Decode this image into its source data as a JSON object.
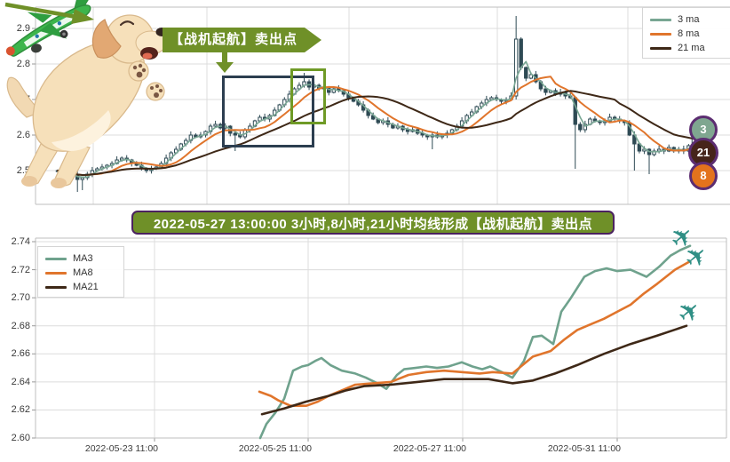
{
  "top_chart": {
    "y_ticks": [
      "2.9",
      "2.8",
      "2.7",
      "2.6",
      "2.5"
    ],
    "legend": [
      {
        "label": "3 ma",
        "color": "#78a693"
      },
      {
        "label": "8 ma",
        "color": "#e0752c"
      },
      {
        "label": "21 ma",
        "color": "#3e2817"
      }
    ],
    "sell_flag_text": "【战机起航】卖出点",
    "badges": [
      {
        "label": "3",
        "color": "#7fa690"
      },
      {
        "label": "21",
        "color": "#46241a"
      },
      {
        "label": "8",
        "color": "#e3731d"
      }
    ]
  },
  "annotation_banner": {
    "text": "2022-05-27 13:00:00 3小时,8小时,21小时均线形成【战机起航】卖出点"
  },
  "bottom_chart": {
    "y_ticks": [
      "2.74",
      "2.72",
      "2.70",
      "2.68",
      "2.66",
      "2.64",
      "2.62",
      "2.60"
    ],
    "x_ticks": [
      "2022-05-23 11:00",
      "2022-05-25 11:00",
      "2022-05-27 11:00",
      "2022-05-31 11:00"
    ],
    "legend": [
      {
        "label": "MA3",
        "color": "#6fa28d"
      },
      {
        "label": "MA8",
        "color": "#e0752c"
      },
      {
        "label": "MA21",
        "color": "#3e2817"
      }
    ]
  },
  "icons": {
    "airplane": "✈"
  },
  "colors": {
    "candle": "#2e4a54",
    "grid": "#dcdcdc",
    "spine": "#bfbfbf",
    "olive_banner": "#6f9028",
    "purple_border": "#4b2260",
    "box_navy": "#2c3e50",
    "box_green": "#6f9a26"
  },
  "chart_data": [
    {
      "type": "candlestick",
      "title": "",
      "ylabel": "",
      "ylim": [
        2.44,
        2.96
      ],
      "y_tick_values": [
        2.9,
        2.8,
        2.7,
        2.6,
        2.5
      ],
      "grid": true,
      "legend_position": "top-right",
      "ma_periods": [
        3,
        8,
        21
      ],
      "ma_colors": {
        "3": "#78a693",
        "8": "#e0752c",
        "21": "#3e2817"
      },
      "closes": [
        2.5,
        2.495,
        2.485,
        2.49,
        2.475,
        2.48,
        2.49,
        2.5,
        2.505,
        2.51,
        2.515,
        2.52,
        2.53,
        2.535,
        2.53,
        2.52,
        2.515,
        2.505,
        2.5,
        2.505,
        2.51,
        2.52,
        2.535,
        2.55,
        2.56,
        2.575,
        2.585,
        2.6,
        2.595,
        2.6,
        2.61,
        2.625,
        2.63,
        2.62,
        2.625,
        2.605,
        2.6,
        2.595,
        2.615,
        2.625,
        2.64,
        2.65,
        2.645,
        2.655,
        2.67,
        2.685,
        2.7,
        2.715,
        2.73,
        2.74,
        2.75,
        2.735,
        2.74,
        2.73,
        2.735,
        2.72,
        2.73,
        2.725,
        2.715,
        2.705,
        2.695,
        2.685,
        2.67,
        2.655,
        2.645,
        2.635,
        2.64,
        2.63,
        2.62,
        2.625,
        2.615,
        2.61,
        2.615,
        2.605,
        2.6,
        2.595,
        2.6,
        2.595,
        2.6,
        2.605,
        2.615,
        2.625,
        2.64,
        2.655,
        2.665,
        2.68,
        2.69,
        2.7,
        2.705,
        2.7,
        2.695,
        2.7,
        2.71,
        2.87,
        2.79,
        2.76,
        2.77,
        2.75,
        2.73,
        2.72,
        2.725,
        2.715,
        2.72,
        2.71,
        2.705,
        2.63,
        2.615,
        2.63,
        2.645,
        2.64,
        2.635,
        2.64,
        2.65,
        2.645,
        2.64,
        2.635,
        2.6,
        2.575,
        2.555,
        2.56,
        2.545,
        2.555,
        2.56,
        2.555,
        2.565,
        2.555,
        2.56,
        2.555,
        2.57,
        2.59
      ],
      "wick_overrides": {
        "4": {
          "low": 2.44
        },
        "5": {
          "low": 2.445
        },
        "36": {
          "low": 2.555
        },
        "50": {
          "high": 2.775
        },
        "76": {
          "low": 2.56
        },
        "93": {
          "high": 2.935,
          "low": 2.7
        },
        "94": {
          "high": 2.875
        },
        "105": {
          "low": 2.505
        },
        "117": {
          "low": 2.5
        },
        "120": {
          "low": 2.49
        }
      }
    },
    {
      "type": "line",
      "title": "",
      "ylabel": "",
      "ylim": [
        2.595,
        2.745
      ],
      "y_tick_values": [
        2.74,
        2.72,
        2.7,
        2.68,
        2.66,
        2.64,
        2.62,
        2.6
      ],
      "x_tick_labels": [
        "2022-05-23 11:00",
        "2022-05-25 11:00",
        "2022-05-27 11:00",
        "2022-05-31 11:00"
      ],
      "grid": true,
      "legend_position": "top-left",
      "series": [
        {
          "name": "MA3",
          "color": "#6fa28d",
          "points": [
            [
              293,
              2.6
            ],
            [
              300,
              2.61
            ],
            [
              310,
              2.618
            ],
            [
              320,
              2.628
            ],
            [
              330,
              2.648
            ],
            [
              340,
              2.651
            ],
            [
              347,
              2.652
            ],
            [
              355,
              2.655
            ],
            [
              362,
              2.657
            ],
            [
              372,
              2.652
            ],
            [
              385,
              2.648
            ],
            [
              400,
              2.646
            ],
            [
              412,
              2.643
            ],
            [
              425,
              2.639
            ],
            [
              435,
              2.635
            ],
            [
              447,
              2.645
            ],
            [
              455,
              2.649
            ],
            [
              468,
              2.65
            ],
            [
              480,
              2.651
            ],
            [
              492,
              2.65
            ],
            [
              505,
              2.651
            ],
            [
              520,
              2.654
            ],
            [
              532,
              2.651
            ],
            [
              543,
              2.649
            ],
            [
              552,
              2.651
            ],
            [
              565,
              2.647
            ],
            [
              577,
              2.643
            ],
            [
              590,
              2.655
            ],
            [
              600,
              2.672
            ],
            [
              610,
              2.673
            ],
            [
              623,
              2.667
            ],
            [
              632,
              2.69
            ],
            [
              643,
              2.7
            ],
            [
              658,
              2.715
            ],
            [
              670,
              2.719
            ],
            [
              683,
              2.721
            ],
            [
              695,
              2.719
            ],
            [
              710,
              2.72
            ],
            [
              728,
              2.715
            ],
            [
              742,
              2.722
            ],
            [
              755,
              2.73
            ],
            [
              766,
              2.734
            ],
            [
              777,
              2.737
            ]
          ]
        },
        {
          "name": "MA8",
          "color": "#e0752c",
          "points": [
            [
              292,
              2.633
            ],
            [
              305,
              2.63
            ],
            [
              313,
              2.627
            ],
            [
              327,
              2.623
            ],
            [
              345,
              2.623
            ],
            [
              358,
              2.626
            ],
            [
              370,
              2.63
            ],
            [
              385,
              2.634
            ],
            [
              400,
              2.638
            ],
            [
              420,
              2.639
            ],
            [
              440,
              2.64
            ],
            [
              460,
              2.645
            ],
            [
              480,
              2.647
            ],
            [
              500,
              2.648
            ],
            [
              520,
              2.647
            ],
            [
              540,
              2.646
            ],
            [
              555,
              2.647
            ],
            [
              577,
              2.646
            ],
            [
              600,
              2.658
            ],
            [
              620,
              2.662
            ],
            [
              635,
              2.67
            ],
            [
              650,
              2.677
            ],
            [
              665,
              2.681
            ],
            [
              680,
              2.685
            ],
            [
              695,
              2.69
            ],
            [
              710,
              2.695
            ],
            [
              725,
              2.703
            ],
            [
              740,
              2.71
            ],
            [
              760,
              2.72
            ],
            [
              777,
              2.726
            ]
          ]
        },
        {
          "name": "MA21",
          "color": "#3e2817",
          "points": [
            [
              295,
              2.617
            ],
            [
              320,
              2.621
            ],
            [
              345,
              2.626
            ],
            [
              370,
              2.63
            ],
            [
              390,
              2.634
            ],
            [
              410,
              2.637
            ],
            [
              440,
              2.638
            ],
            [
              470,
              2.64
            ],
            [
              500,
              2.642
            ],
            [
              530,
              2.642
            ],
            [
              550,
              2.642
            ],
            [
              577,
              2.639
            ],
            [
              600,
              2.641
            ],
            [
              625,
              2.646
            ],
            [
              650,
              2.652
            ],
            [
              665,
              2.656
            ],
            [
              680,
              2.66
            ],
            [
              710,
              2.667
            ],
            [
              740,
              2.673
            ],
            [
              773,
              2.68
            ]
          ]
        }
      ]
    }
  ]
}
